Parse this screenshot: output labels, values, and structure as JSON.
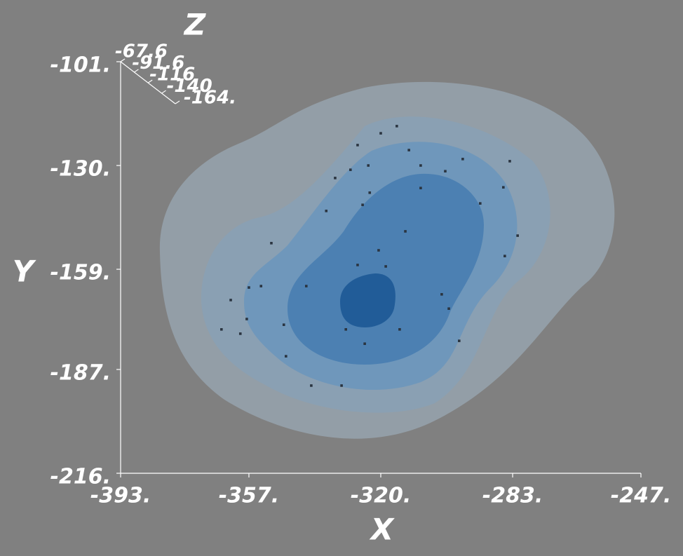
{
  "chart_data": {
    "type": "scatter",
    "x_label": "X",
    "y_label": "Y",
    "z_label": "Z",
    "xlim": [
      -393,
      -247
    ],
    "xticks": [
      {
        "value": -393,
        "label": "-393."
      },
      {
        "value": -357,
        "label": "-357."
      },
      {
        "value": -320,
        "label": "-320."
      },
      {
        "value": -283,
        "label": "-283."
      },
      {
        "value": -247,
        "label": "-247."
      }
    ],
    "ylim": [
      -216,
      -101
    ],
    "yticks": [
      {
        "value": -216,
        "label": "-216."
      },
      {
        "value": -187,
        "label": "-187."
      },
      {
        "value": -159,
        "label": "-159."
      },
      {
        "value": -130,
        "label": "-130."
      },
      {
        "value": -101,
        "label": "-101."
      }
    ],
    "zlim": [
      -67.6,
      -164
    ],
    "zticks": [
      -67.6,
      -91.6,
      -116,
      -140,
      {
        "value": -164,
        "label": "-164."
      }
    ],
    "color": "#2a3440",
    "x": [
      -315.5,
      -320.0,
      -326.5,
      -312.1,
      -323.5,
      -328.5,
      -308.8,
      -301.9,
      -297.0,
      -283.8,
      -332.8,
      -285.6,
      -308.8,
      -323.1,
      -292.1,
      -335.3,
      -325.1,
      -281.6,
      -350.7,
      -285.2,
      -320.6,
      -313.1,
      -318.6,
      -326.5,
      -357.0,
      -353.6,
      -362.1,
      -357.6,
      -364.7,
      -359.4,
      -347.2,
      -340.9,
      -329.8,
      -324.5,
      -346.6,
      -339.5,
      -331.0,
      -298.0,
      -300.9,
      -314.7,
      -302.9
    ],
    "y": [
      -119.0,
      -121.0,
      -124.3,
      -125.7,
      -130.0,
      -131.2,
      -130.0,
      -131.6,
      -128.2,
      -128.8,
      -133.5,
      -136.1,
      -136.3,
      -137.6,
      -140.6,
      -142.7,
      -141.0,
      -149.6,
      -151.7,
      -155.3,
      -153.7,
      -148.4,
      -158.2,
      -157.8,
      -164.1,
      -163.7,
      -167.6,
      -172.9,
      -175.8,
      -177.0,
      -174.5,
      -163.7,
      -175.8,
      -179.8,
      -183.3,
      -191.5,
      -191.5,
      -179.0,
      -170.0,
      -175.8,
      -166.0
    ]
  }
}
